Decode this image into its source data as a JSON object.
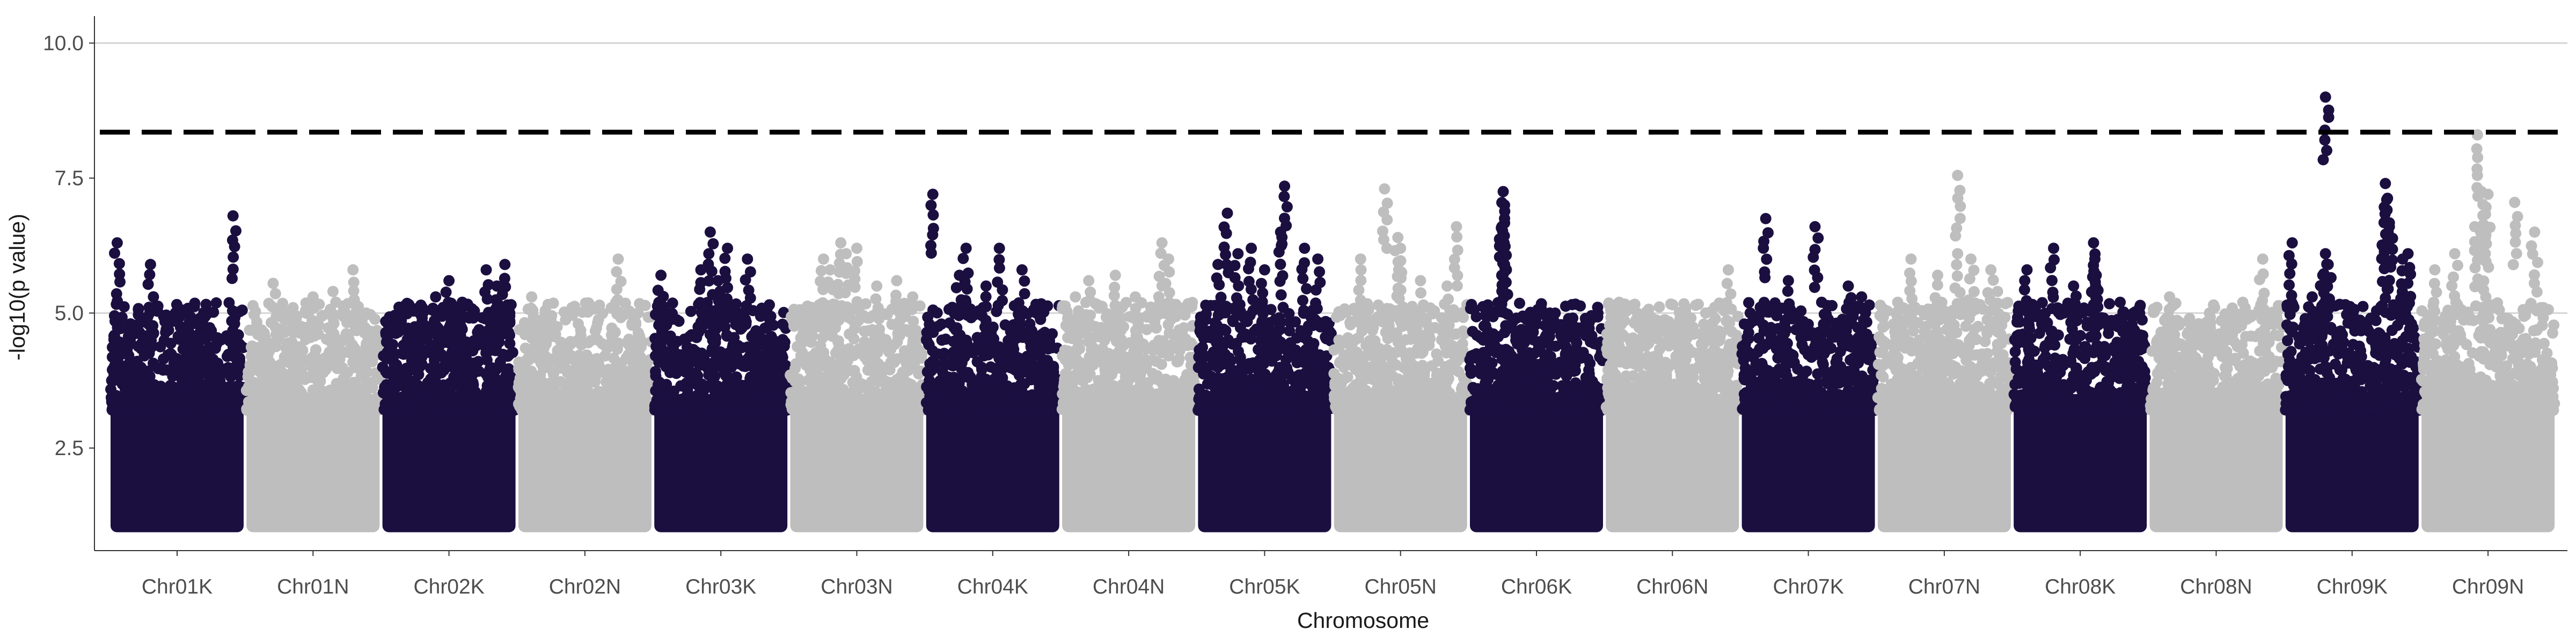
{
  "chart_data": {
    "type": "scatter",
    "title": "",
    "xlabel": "Chromosome",
    "ylabel": "-log10(p value)",
    "ylim": [
      0.6,
      10.5
    ],
    "yticks": [
      2.5,
      5.0,
      7.5,
      10.0
    ],
    "ytick_labels": [
      "2.5",
      "5.0",
      "7.5",
      "10.0"
    ],
    "grid": "horizontal major only",
    "legend": "none",
    "threshold": {
      "y": 8.35,
      "style": "dashed",
      "color": "#000000"
    },
    "colors": {
      "K": "#1b0f40",
      "N": "#bebebe"
    },
    "categories": [
      "Chr01K",
      "Chr01N",
      "Chr02K",
      "Chr02N",
      "Chr03K",
      "Chr03N",
      "Chr04K",
      "Chr04N",
      "Chr05K",
      "Chr05N",
      "Chr06K",
      "Chr06N",
      "Chr07K",
      "Chr07N",
      "Chr08K",
      "Chr08N",
      "Chr09K",
      "Chr09N"
    ],
    "series": [
      {
        "chromosome": "Chr01K",
        "color": "#1b0f40",
        "min": 1.0,
        "max": 6.8,
        "peaks": [
          [
            0.05,
            6.3
          ],
          [
            0.3,
            5.9
          ],
          [
            0.15,
            4.8
          ],
          [
            0.92,
            6.8
          ],
          [
            0.95,
            5.0
          ],
          [
            0.6,
            4.5
          ],
          [
            0.03,
            4.95
          ],
          [
            0.75,
            4.3
          ]
        ]
      },
      {
        "chromosome": "Chr01N",
        "color": "#bebebe",
        "min": 1.0,
        "max": 5.8,
        "peaks": [
          [
            0.2,
            5.55
          ],
          [
            0.8,
            5.8
          ],
          [
            0.5,
            5.3
          ],
          [
            0.35,
            5.1
          ],
          [
            0.65,
            5.4
          ],
          [
            0.9,
            5.0
          ]
        ]
      },
      {
        "chromosome": "Chr02K",
        "color": "#1b0f40",
        "min": 1.0,
        "max": 5.9,
        "peaks": [
          [
            0.5,
            5.6
          ],
          [
            0.78,
            5.8
          ],
          [
            0.92,
            5.9
          ],
          [
            0.4,
            5.3
          ],
          [
            0.6,
            5.2
          ],
          [
            0.86,
            5.5
          ],
          [
            0.3,
            5.1
          ]
        ]
      },
      {
        "chromosome": "Chr02N",
        "color": "#bebebe",
        "min": 1.0,
        "max": 6.0,
        "peaks": [
          [
            0.75,
            6.0
          ],
          [
            0.1,
            5.3
          ],
          [
            0.9,
            5.0
          ],
          [
            0.45,
            4.8
          ]
        ]
      },
      {
        "chromosome": "Chr03K",
        "color": "#1b0f40",
        "min": 1.0,
        "max": 6.5,
        "peaks": [
          [
            0.05,
            5.7
          ],
          [
            0.42,
            6.5
          ],
          [
            0.55,
            6.2
          ],
          [
            0.7,
            6.0
          ],
          [
            0.35,
            5.8
          ],
          [
            0.48,
            5.6
          ],
          [
            0.85,
            5.1
          ]
        ]
      },
      {
        "chromosome": "Chr03N",
        "color": "#bebebe",
        "min": 1.0,
        "max": 6.3,
        "peaks": [
          [
            0.38,
            6.3
          ],
          [
            0.42,
            6.1
          ],
          [
            0.5,
            6.2
          ],
          [
            0.25,
            6.0
          ],
          [
            0.8,
            5.6
          ],
          [
            0.92,
            5.3
          ],
          [
            0.3,
            5.8
          ],
          [
            0.65,
            5.5
          ]
        ]
      },
      {
        "chromosome": "Chr04K",
        "color": "#1b0f40",
        "min": 1.0,
        "max": 7.2,
        "peaks": [
          [
            0.05,
            7.2
          ],
          [
            0.3,
            6.2
          ],
          [
            0.55,
            6.2
          ],
          [
            0.72,
            5.8
          ],
          [
            0.25,
            5.7
          ],
          [
            0.45,
            5.5
          ],
          [
            0.88,
            5.1
          ]
        ]
      },
      {
        "chromosome": "Chr04N",
        "color": "#bebebe",
        "min": 1.0,
        "max": 6.3,
        "peaks": [
          [
            0.4,
            5.7
          ],
          [
            0.75,
            6.3
          ],
          [
            0.8,
            6.0
          ],
          [
            0.2,
            5.6
          ],
          [
            0.55,
            5.3
          ],
          [
            0.1,
            5.3
          ]
        ]
      },
      {
        "chromosome": "Chr05K",
        "color": "#1b0f40",
        "min": 1.0,
        "max": 7.4,
        "peaks": [
          [
            0.22,
            6.85
          ],
          [
            0.4,
            6.2
          ],
          [
            0.65,
            7.35
          ],
          [
            0.62,
            6.5
          ],
          [
            0.8,
            6.2
          ],
          [
            0.3,
            6.1
          ],
          [
            0.5,
            5.8
          ],
          [
            0.9,
            6.0
          ],
          [
            0.15,
            5.9
          ]
        ]
      },
      {
        "chromosome": "Chr05N",
        "color": "#bebebe",
        "min": 1.0,
        "max": 7.3,
        "peaks": [
          [
            0.38,
            7.3
          ],
          [
            0.48,
            6.4
          ],
          [
            0.5,
            6.2
          ],
          [
            0.92,
            6.6
          ],
          [
            0.2,
            6.0
          ],
          [
            0.65,
            5.6
          ],
          [
            0.85,
            5.5
          ]
        ]
      },
      {
        "chromosome": "Chr06K",
        "color": "#1b0f40",
        "min": 1.0,
        "max": 7.3,
        "peaks": [
          [
            0.25,
            7.25
          ],
          [
            0.26,
            7.0
          ],
          [
            0.24,
            6.6
          ],
          [
            0.25,
            6.2
          ],
          [
            0.26,
            5.9
          ],
          [
            0.6,
            5.0
          ],
          [
            0.45,
            4.7
          ],
          [
            0.1,
            4.5
          ]
        ]
      },
      {
        "chromosome": "Chr06N",
        "color": "#bebebe",
        "min": 1.0,
        "max": 5.8,
        "peaks": [
          [
            0.92,
            5.8
          ],
          [
            0.6,
            5.1
          ],
          [
            0.3,
            5.0
          ],
          [
            0.1,
            5.2
          ],
          [
            0.75,
            5.0
          ]
        ]
      },
      {
        "chromosome": "Chr07K",
        "color": "#1b0f40",
        "min": 1.0,
        "max": 6.75,
        "peaks": [
          [
            0.18,
            6.75
          ],
          [
            0.55,
            6.6
          ],
          [
            0.35,
            5.6
          ],
          [
            0.8,
            5.5
          ],
          [
            0.6,
            5.2
          ],
          [
            0.9,
            5.3
          ]
        ]
      },
      {
        "chromosome": "Chr07N",
        "color": "#bebebe",
        "min": 1.0,
        "max": 7.55,
        "peaks": [
          [
            0.6,
            7.55
          ],
          [
            0.25,
            6.0
          ],
          [
            0.6,
            6.1
          ],
          [
            0.7,
            6.0
          ],
          [
            0.85,
            5.8
          ],
          [
            0.45,
            5.7
          ],
          [
            0.9,
            5.4
          ],
          [
            0.15,
            5.2
          ]
        ]
      },
      {
        "chromosome": "Chr08K",
        "color": "#1b0f40",
        "min": 1.0,
        "max": 6.3,
        "peaks": [
          [
            0.1,
            5.8
          ],
          [
            0.3,
            6.2
          ],
          [
            0.6,
            6.3
          ],
          [
            0.61,
            6.0
          ],
          [
            0.62,
            5.7
          ],
          [
            0.8,
            5.2
          ],
          [
            0.45,
            5.5
          ],
          [
            0.9,
            5.0
          ]
        ]
      },
      {
        "chromosome": "Chr08N",
        "color": "#bebebe",
        "min": 1.0,
        "max": 6.0,
        "peaks": [
          [
            0.85,
            6.0
          ],
          [
            0.15,
            5.3
          ],
          [
            0.45,
            5.0
          ],
          [
            0.7,
            5.2
          ],
          [
            0.3,
            4.9
          ]
        ]
      },
      {
        "chromosome": "Chr09K",
        "color": "#1b0f40",
        "min": 1.0,
        "max": 9.0,
        "peaks": [
          [
            0.3,
            9.0
          ],
          [
            0.05,
            6.3
          ],
          [
            0.3,
            6.1
          ],
          [
            0.32,
            5.9
          ],
          [
            0.28,
            5.7
          ],
          [
            0.75,
            7.4
          ],
          [
            0.76,
            7.1
          ],
          [
            0.78,
            6.6
          ],
          [
            0.74,
            6.2
          ],
          [
            0.92,
            6.1
          ],
          [
            0.88,
            6.0
          ],
          [
            0.2,
            5.3
          ]
        ]
      },
      {
        "chromosome": "Chr09N",
        "color": "#bebebe",
        "min": 1.0,
        "max": 8.3,
        "peaks": [
          [
            0.42,
            8.3
          ],
          [
            0.45,
            7.25
          ],
          [
            0.5,
            7.2
          ],
          [
            0.7,
            7.05
          ],
          [
            0.4,
            6.6
          ],
          [
            0.48,
            6.4
          ],
          [
            0.25,
            6.1
          ],
          [
            0.85,
            6.5
          ],
          [
            0.1,
            5.8
          ]
        ]
      }
    ]
  }
}
